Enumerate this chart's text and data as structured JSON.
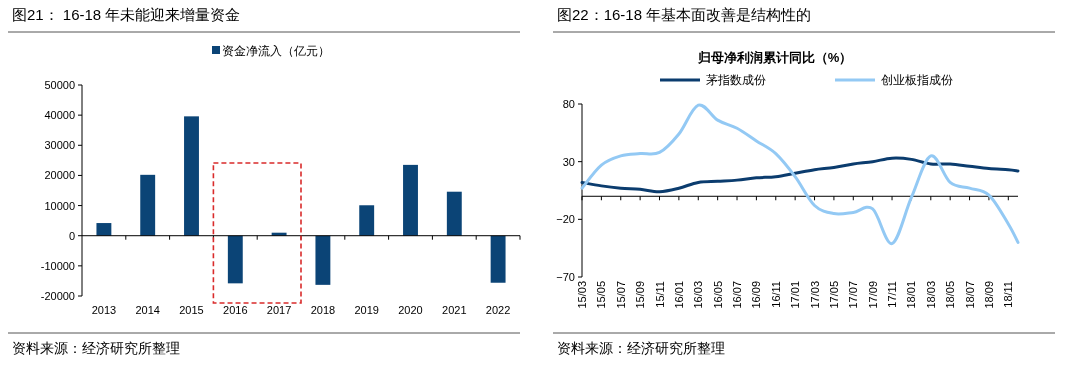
{
  "chart_data": [
    {
      "type": "bar",
      "title": "图21：  16-18 年未能迎来增量资金",
      "categories": [
        "2013",
        "2014",
        "2015",
        "2016",
        "2017",
        "2018",
        "2019",
        "2020",
        "2021",
        "2022"
      ],
      "series": [
        {
          "name": "资金净流入（亿元）",
          "color": "#0b4476",
          "values": [
            4200,
            20200,
            39600,
            -15800,
            1000,
            -16300,
            10100,
            23500,
            14600,
            -15600
          ]
        }
      ],
      "ylim": [
        -20000,
        50000
      ],
      "yticks": [
        -20000,
        -10000,
        0,
        10000,
        20000,
        30000,
        40000,
        50000
      ],
      "legend": "top",
      "annotations": [
        "资料来源：经济研究所整理"
      ]
    },
    {
      "type": "line",
      "title": "图22：16-18 年基本面改善是结构性的",
      "subtitle": "归母净利润累计同比（%）",
      "series": [
        {
          "name": "茅指数成份",
          "color": "#0b3c6e",
          "x": [
            "2015-03",
            "2015-05",
            "2015-07",
            "2015-09",
            "2015-11",
            "2016-01",
            "2016-03",
            "2016-05",
            "2016-07",
            "2016-09",
            "2016-11",
            "2017-01",
            "2017-03",
            "2017-05",
            "2017-07",
            "2017-09",
            "2017-11",
            "2018-01",
            "2018-03",
            "2018-05",
            "2018-07",
            "2018-09",
            "2018-11",
            "2018-12"
          ],
          "values": [
            12,
            9,
            7,
            6,
            4,
            7,
            12,
            13,
            14,
            16,
            17,
            20,
            23,
            25,
            28,
            30,
            33,
            32,
            28,
            28,
            26,
            24,
            23,
            22
          ]
        },
        {
          "name": "创业板指成份",
          "color": "#93c9f4",
          "x": [
            "2015-03",
            "2015-05",
            "2015-07",
            "2015-09",
            "2015-11",
            "2016-01",
            "2016-03",
            "2016-05",
            "2016-07",
            "2016-09",
            "2016-11",
            "2017-01",
            "2017-03",
            "2017-05",
            "2017-07",
            "2017-09",
            "2017-11",
            "2018-01",
            "2018-03",
            "2018-05",
            "2018-07",
            "2018-09",
            "2018-11",
            "2018-12"
          ],
          "values": [
            7,
            27,
            35,
            37,
            38,
            54,
            79,
            66,
            59,
            48,
            37,
            17,
            -8,
            -15,
            -14,
            -11,
            -41,
            -1,
            35,
            12,
            7,
            1,
            -24,
            -40
          ]
        }
      ],
      "xlim": [
        "2015-03",
        "2018-12"
      ],
      "xticks": [
        {
          "value": "2015-03",
          "label": "15/03"
        },
        {
          "value": "2015-05",
          "label": "15/05"
        },
        {
          "value": "2015-07",
          "label": "15/07"
        },
        {
          "value": "2015-09",
          "label": "15/09"
        },
        {
          "value": "2015-11",
          "label": "15/11"
        },
        {
          "value": "2016-01",
          "label": "16/01"
        },
        {
          "value": "2016-03",
          "label": "16/03"
        },
        {
          "value": "2016-05",
          "label": "16/05"
        },
        {
          "value": "2016-07",
          "label": "16/07"
        },
        {
          "value": "2016-09",
          "label": "16/09"
        },
        {
          "value": "2016-11",
          "label": "16/11"
        },
        {
          "value": "2017-01",
          "label": "17/01"
        },
        {
          "value": "2017-03",
          "label": "17/03"
        },
        {
          "value": "2017-05",
          "label": "17/05"
        },
        {
          "value": "2017-07",
          "label": "17/07"
        },
        {
          "value": "2017-09",
          "label": "17/09"
        },
        {
          "value": "2017-11",
          "label": "17/11"
        },
        {
          "value": "2018-01",
          "label": "18/01"
        },
        {
          "value": "2018-03",
          "label": "18/03"
        },
        {
          "value": "2018-05",
          "label": "18/05"
        },
        {
          "value": "2018-07",
          "label": "18/07"
        },
        {
          "value": "2018-09",
          "label": "18/09"
        },
        {
          "value": "2018-11",
          "label": "18/11"
        }
      ],
      "ylim": [
        -70,
        80
      ],
      "yticks": [
        {
          "value": -70,
          "label": "−70"
        },
        {
          "value": -20,
          "label": "−20"
        },
        30,
        80
      ],
      "legend": "top",
      "marker": "none",
      "line_style": "solid",
      "annotations": [
        "资料来源：经济研究所整理"
      ]
    }
  ]
}
